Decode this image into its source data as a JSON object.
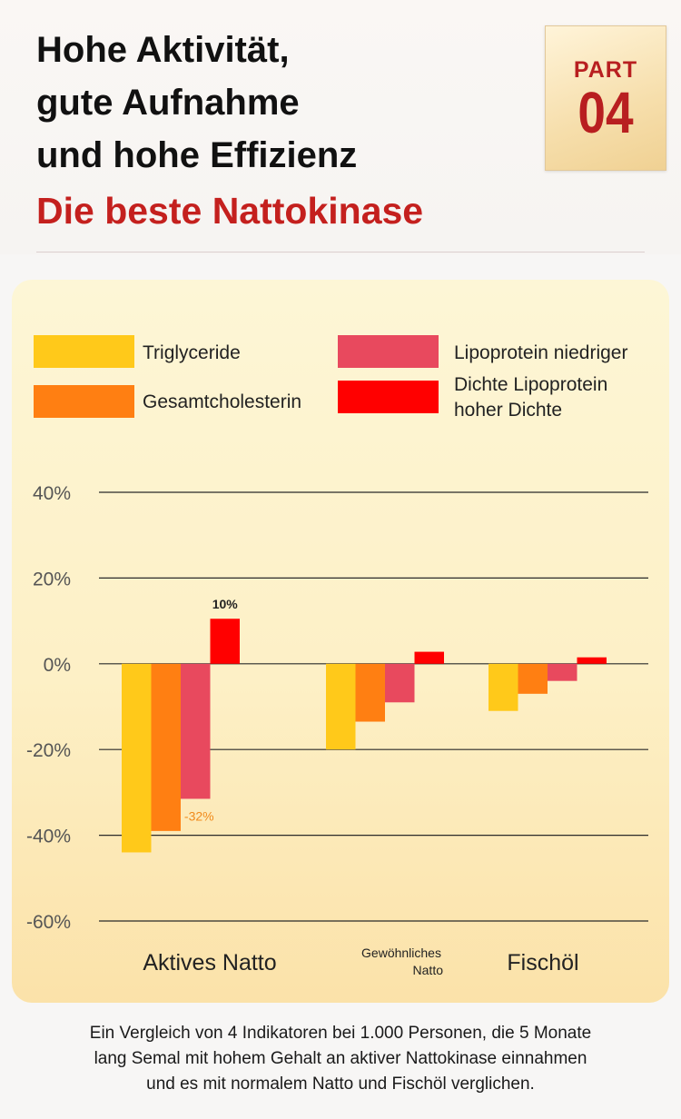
{
  "header": {
    "headline_lines": [
      "Hohe Aktivität,",
      "gute Aufnahme",
      "und hohe Effizienz"
    ],
    "subheadline": "Die beste Nattokinase",
    "badge_word": "PART",
    "badge_number": "04"
  },
  "colors": {
    "accent_red": "#c4201e",
    "triglyceride": "#ffc91a",
    "cholesterol": "#ff7f12",
    "ldl": "#e8495e",
    "hdl": "#ff0000"
  },
  "chart_data": {
    "type": "bar",
    "categories": [
      "Aktives Natto",
      "Gewöhnliches Natto",
      "Fischöl"
    ],
    "category_labels": [
      [
        "Aktives Natto"
      ],
      [
        "Gewöhnliches",
        "Natto"
      ],
      [
        "Fischöl"
      ]
    ],
    "series": [
      {
        "name": "Triglyceride",
        "color": "#ffc91a",
        "values": [
          -44,
          -20,
          -11
        ]
      },
      {
        "name": "Gesamtcholesterin",
        "color": "#ff7f12",
        "values": [
          -39,
          -13.5,
          -7
        ]
      },
      {
        "name": "Lipoprotein niedriger",
        "color": "#e8495e",
        "values": [
          -31.5,
          -9,
          -4
        ]
      },
      {
        "name": "Dichte Lipoprotein hoher Dichte",
        "color": "#ff0000",
        "values": [
          10.5,
          2.8,
          1.5
        ]
      }
    ],
    "legend_labels": [
      [
        "Triglyceride"
      ],
      [
        "Gesamtcholesterin"
      ],
      [
        "Lipoprotein niedriger"
      ],
      [
        "Dichte Lipoprotein",
        "hoher Dichte"
      ]
    ],
    "y_ticks": [
      40,
      20,
      0,
      -20,
      -40,
      -60
    ],
    "y_tick_labels": [
      "40%",
      "20%",
      "0%",
      "-20%",
      "-40%",
      "-60%"
    ],
    "ylim": [
      -60,
      40
    ],
    "annotations": [
      {
        "text": "10%",
        "series": 3,
        "category": 0,
        "color": "#222222"
      },
      {
        "text": "-32%",
        "series": 2,
        "category": 0,
        "color": "#f08a1c"
      }
    ],
    "grid": true,
    "legend_position": "top"
  },
  "caption_lines": [
    "Ein Vergleich von 4 Indikatoren bei 1.000 Personen, die 5 Monate",
    "lang Semal mit hohem Gehalt an aktiver Nattokinase einnahmen",
    "und es mit normalem Natto und Fischöl verglichen."
  ]
}
